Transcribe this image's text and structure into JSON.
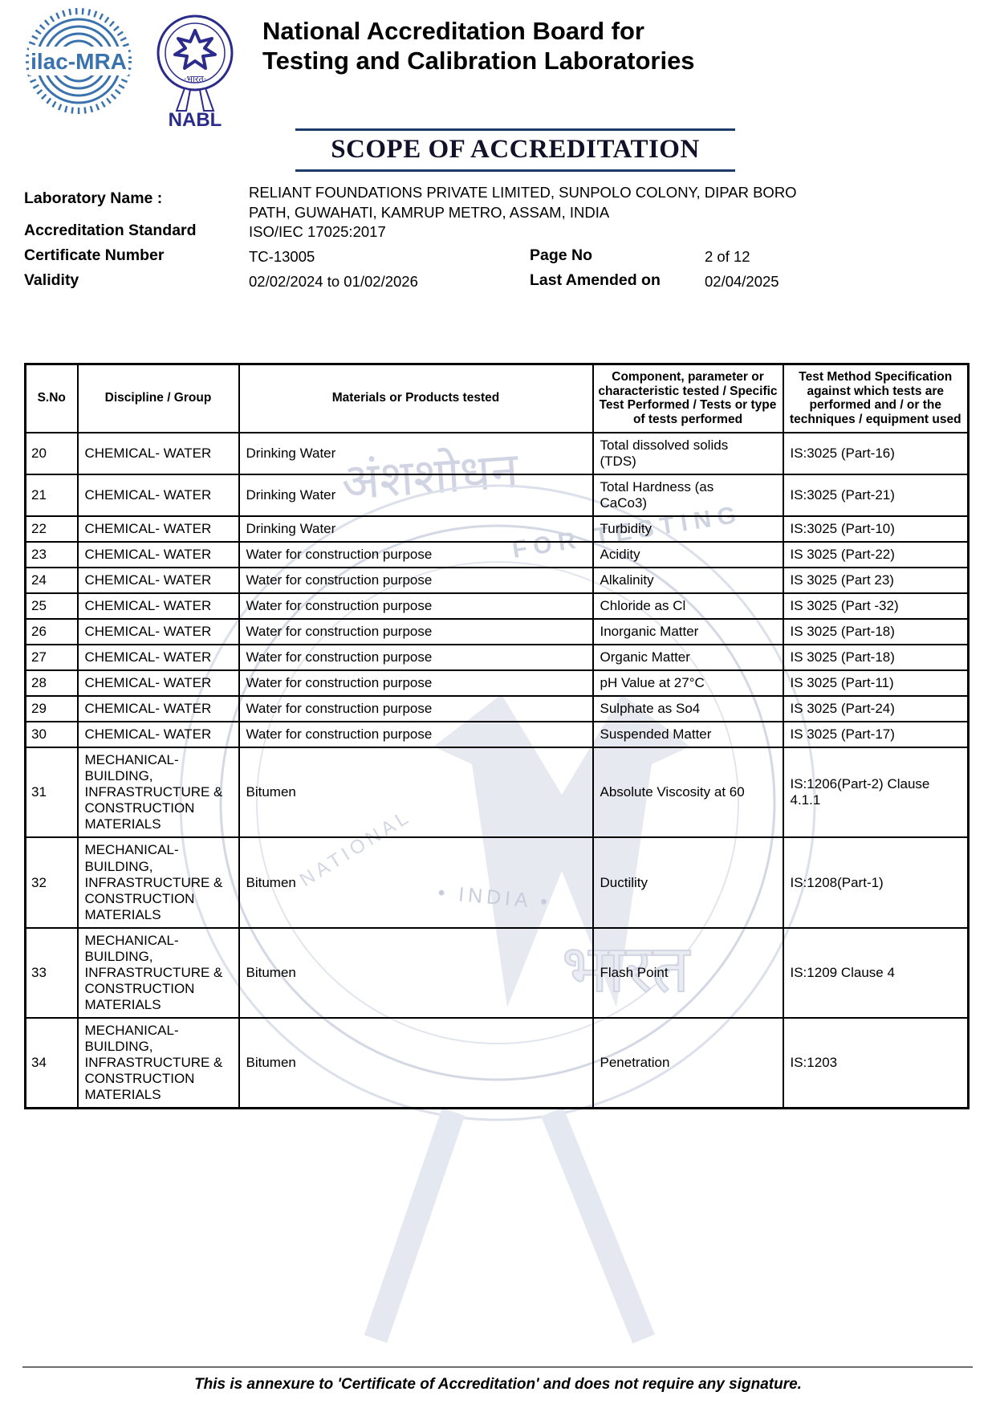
{
  "header": {
    "ilac_logo_text": "ilac-MRA",
    "nabl_logo_text": "NABL",
    "nabl_logo_subtext": "·भारत·",
    "org_title_line1": "National Accreditation Board for",
    "org_title_line2": "Testing and Calibration Laboratories",
    "scope_title": "SCOPE OF ACCREDITATION"
  },
  "info": {
    "lab_name_label": "Laboratory Name :",
    "lab_name_value": "RELIANT FOUNDATIONS PRIVATE LIMITED, SUNPOLO COLONY, DIPAR BORO PATH, GUWAHATI, KAMRUP METRO, ASSAM, INDIA",
    "standard_label": "Accreditation Standard",
    "standard_value": "ISO/IEC 17025:2017",
    "certificate_label": "Certificate Number",
    "certificate_value": "TC-13005",
    "page_label": "Page No",
    "page_value": "2 of 12",
    "validity_label": "Validity",
    "validity_value": "02/02/2024 to 01/02/2026",
    "amended_label": "Last Amended on",
    "amended_value": "02/04/2025"
  },
  "table": {
    "headers": [
      "S.No",
      "Discipline / Group",
      "Materials or Products tested",
      "Component, parameter or characteristic tested / Specific Test Performed / Tests or type of tests performed",
      "Test Method Specification against which tests are performed and / or the techniques / equipment used"
    ],
    "rows": [
      {
        "sno": "20",
        "discipline": "CHEMICAL- WATER",
        "material": "Drinking Water",
        "component": "Total dissolved solids (TDS)",
        "method": "IS:3025 (Part-16)"
      },
      {
        "sno": "21",
        "discipline": "CHEMICAL- WATER",
        "material": "Drinking Water",
        "component": "Total Hardness (as CaCo3)",
        "method": "IS:3025 (Part-21)"
      },
      {
        "sno": "22",
        "discipline": "CHEMICAL- WATER",
        "material": "Drinking Water",
        "component": "Turbidity",
        "method": "IS:3025 (Part-10)"
      },
      {
        "sno": "23",
        "discipline": "CHEMICAL- WATER",
        "material": "Water for construction purpose",
        "component": "Acidity",
        "method": "IS 3025 (Part-22)"
      },
      {
        "sno": "24",
        "discipline": "CHEMICAL- WATER",
        "material": "Water for construction purpose",
        "component": "Alkalinity",
        "method": "IS 3025 (Part 23)"
      },
      {
        "sno": "25",
        "discipline": "CHEMICAL- WATER",
        "material": "Water for construction purpose",
        "component": "Chloride as Cl",
        "method": "IS 3025 (Part -32)"
      },
      {
        "sno": "26",
        "discipline": "CHEMICAL- WATER",
        "material": "Water for construction purpose",
        "component": "Inorganic Matter",
        "method": "IS 3025 (Part-18)"
      },
      {
        "sno": "27",
        "discipline": "CHEMICAL- WATER",
        "material": "Water for construction purpose",
        "component": "Organic Matter",
        "method": "IS 3025 (Part-18)"
      },
      {
        "sno": "28",
        "discipline": "CHEMICAL- WATER",
        "material": "Water for construction purpose",
        "component": "pH Value at 27°C",
        "method": "IS 3025 (Part-11)"
      },
      {
        "sno": "29",
        "discipline": "CHEMICAL- WATER",
        "material": "Water for construction purpose",
        "component": "Sulphate as So4",
        "method": "IS 3025 (Part-24)"
      },
      {
        "sno": "30",
        "discipline": "CHEMICAL- WATER",
        "material": "Water for construction purpose",
        "component": "Suspended Matter",
        "method": "IS 3025 (Part-17)"
      },
      {
        "sno": "31",
        "discipline": "MECHANICAL- BUILDING, INFRASTRUCTURE & CONSTRUCTION MATERIALS",
        "material": "Bitumen",
        "component": "Absolute Viscosity at 60",
        "method": "IS:1206(Part-2) Clause 4.1.1"
      },
      {
        "sno": "32",
        "discipline": "MECHANICAL- BUILDING, INFRASTRUCTURE & CONSTRUCTION MATERIALS",
        "material": "Bitumen",
        "component": "Ductility",
        "method": "IS:1208(Part-1)"
      },
      {
        "sno": "33",
        "discipline": "MECHANICAL- BUILDING, INFRASTRUCTURE & CONSTRUCTION MATERIALS",
        "material": "Bitumen",
        "component": "Flash Point",
        "method": "IS:1209 Clause 4"
      },
      {
        "sno": "34",
        "discipline": "MECHANICAL- BUILDING, INFRASTRUCTURE & CONSTRUCTION MATERIALS",
        "material": "Bitumen",
        "component": "Penetration",
        "method": "IS:1203"
      }
    ]
  },
  "watermark": {
    "devanagari_top": "अंशशोधन",
    "arc_text": "FOR TESTING",
    "national_text": "NATIONAL",
    "india_text": "• INDIA •",
    "bharat_text": "भारत"
  },
  "footer": {
    "note": "This is annexure to 'Certificate of Accreditation' and does not require any signature."
  },
  "colors": {
    "accent_navy": "#1e3a68",
    "ilac_blue": "#3a72ad",
    "nabl_indigo": "#2b2b8c"
  }
}
